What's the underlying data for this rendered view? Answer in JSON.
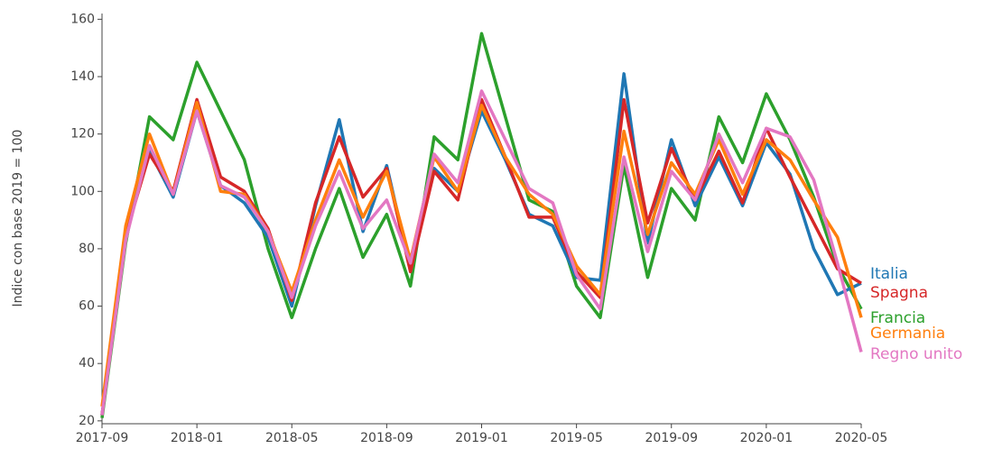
{
  "chart_data": {
    "type": "line",
    "y_label": "Indice con base 2019 = 100",
    "categories": [
      "2017-09",
      null,
      null,
      null,
      "2018-01",
      null,
      null,
      null,
      "2018-05",
      null,
      null,
      null,
      "2018-09",
      null,
      null,
      null,
      "2019-01",
      null,
      null,
      null,
      "2019-05",
      null,
      null,
      null,
      "2019-09",
      null,
      null,
      null,
      "2020-01",
      null,
      null,
      null,
      "2020-05"
    ],
    "series": [
      {
        "name": "Francia",
        "color": "#2ca02c",
        "values": [
          21,
          82,
          126,
          118,
          145,
          128,
          111,
          80,
          56,
          80,
          101,
          77,
          92,
          67,
          119,
          111,
          155,
          126,
          97,
          93,
          67,
          56,
          109,
          70,
          101,
          90,
          126,
          110,
          134,
          118,
          98,
          74,
          59
        ]
      },
      {
        "name": "Italia",
        "color": "#1f77b4",
        "values": [
          22,
          85,
          114,
          98,
          128,
          102,
          96,
          84,
          60,
          95,
          125,
          86,
          109,
          73,
          108,
          100,
          128,
          111,
          92,
          88,
          70,
          69,
          141,
          82,
          118,
          95,
          112,
          95,
          117,
          106,
          80,
          64,
          68
        ]
      },
      {
        "name": "Spagna",
        "color": "#d62728",
        "values": [
          22,
          85,
          113,
          100,
          132,
          105,
          100,
          87,
          62,
          96,
          119,
          98,
          108,
          72,
          107,
          97,
          132,
          112,
          91,
          91,
          72,
          63,
          132,
          89,
          115,
          97,
          114,
          96,
          122,
          105,
          89,
          73,
          68
        ]
      },
      {
        "name": "Germania",
        "color": "#ff7f0e",
        "values": [
          25,
          88,
          120,
          99,
          131,
          100,
          99,
          86,
          65,
          90,
          111,
          91,
          107,
          76,
          112,
          100,
          130,
          112,
          99,
          92,
          74,
          64,
          121,
          85,
          110,
          99,
          118,
          99,
          118,
          111,
          97,
          84,
          56
        ]
      },
      {
        "name": "Regno unito",
        "color": "#e377c2",
        "values": [
          22,
          83,
          116,
          99,
          128,
          102,
          98,
          86,
          63,
          88,
          107,
          87,
          97,
          75,
          113,
          103,
          135,
          118,
          101,
          96,
          71,
          59,
          112,
          79,
          107,
          97,
          120,
          103,
          122,
          119,
          104,
          75,
          44
        ]
      }
    ],
    "ylim": [
      19,
      162
    ],
    "yticks": [
      20,
      40,
      60,
      80,
      100,
      120,
      140,
      160
    ]
  }
}
